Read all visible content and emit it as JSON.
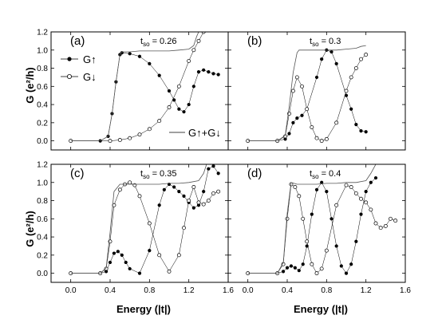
{
  "figure": {
    "ylabel_top": "G (e²/h)",
    "ylabel_bottom": "G (e²/h)",
    "xlabel_left": "Energy (|t|)",
    "xlabel_right": "Energy (|t|)"
  },
  "legend": {
    "up": "G↑",
    "down": "G↓",
    "sum": "G↑+G↓"
  },
  "chart_data": [
    {
      "type": "line",
      "panel": "(a)",
      "annotation": "t_so = 0.26",
      "annotation_main": "t",
      "annotation_sub": "so",
      "annotation_value": " = 0.26",
      "xlim": [
        -0.2,
        1.6
      ],
      "ylim": [
        -0.1,
        1.2
      ],
      "xticks": [
        "0.0",
        "0.4",
        "0.8",
        "1.2",
        "1.6"
      ],
      "yticks": [
        "0.0",
        "0.2",
        "0.4",
        "0.6",
        "0.8",
        "1.0",
        "1.2"
      ],
      "series": [
        {
          "name": "G↑",
          "marker": "filled-circle",
          "line": "none",
          "x": [
            0.0,
            0.3,
            0.38,
            0.42,
            0.46,
            0.5,
            0.52,
            0.6,
            0.7,
            0.8,
            0.9,
            1.0,
            1.05,
            1.1,
            1.15,
            1.2,
            1.25,
            1.3,
            1.35,
            1.4,
            1.45,
            1.5
          ],
          "y": [
            0.0,
            0.0,
            0.05,
            0.3,
            0.65,
            0.95,
            0.97,
            0.96,
            0.93,
            0.85,
            0.72,
            0.55,
            0.45,
            0.35,
            0.32,
            0.4,
            0.6,
            0.76,
            0.78,
            0.76,
            0.74,
            0.73
          ]
        },
        {
          "name": "G↓",
          "marker": "open-circle",
          "line": "none",
          "x": [
            0.0,
            0.4,
            0.5,
            0.6,
            0.7,
            0.8,
            0.9,
            1.0,
            1.1,
            1.2,
            1.25,
            1.3,
            1.35
          ],
          "y": [
            0.0,
            0.0,
            0.01,
            0.03,
            0.07,
            0.13,
            0.22,
            0.37,
            0.6,
            0.88,
            1.0,
            1.1,
            1.2
          ]
        },
        {
          "name": "G↑+G↓",
          "marker": "none",
          "line": "solid",
          "x": [
            0.0,
            0.3,
            0.38,
            0.42,
            0.46,
            0.5,
            0.52,
            0.6,
            0.7,
            0.8,
            0.9,
            1.0,
            1.1,
            1.2,
            1.25,
            1.28,
            1.3
          ],
          "y": [
            0.0,
            0.0,
            0.05,
            0.3,
            0.65,
            0.95,
            0.98,
            0.98,
            0.99,
            0.99,
            0.99,
            0.99,
            1.0,
            1.01,
            1.05,
            1.15,
            1.2
          ]
        }
      ]
    },
    {
      "type": "line",
      "panel": "(b)",
      "annotation": "t_so = 0.3",
      "annotation_main": "t",
      "annotation_sub": "so",
      "annotation_value": " = 0.3",
      "xlim": [
        -0.2,
        1.6
      ],
      "ylim": [
        -0.1,
        1.2
      ],
      "xticks": [
        "0.0",
        "0.4",
        "0.8",
        "1.2",
        "1.6"
      ],
      "yticks": [
        "0.0",
        "0.2",
        "0.4",
        "0.6",
        "0.8",
        "1.0",
        "1.2"
      ],
      "series": [
        {
          "name": "G↑",
          "marker": "filled-circle",
          "line": "none",
          "x": [
            0.0,
            0.3,
            0.38,
            0.42,
            0.46,
            0.5,
            0.55,
            0.6,
            0.7,
            0.75,
            0.8,
            0.85,
            0.9,
            1.0,
            1.05,
            1.1,
            1.15,
            1.2
          ],
          "y": [
            0.0,
            0.0,
            0.02,
            0.08,
            0.2,
            0.25,
            0.28,
            0.35,
            0.7,
            0.9,
            1.0,
            0.98,
            0.85,
            0.5,
            0.35,
            0.18,
            0.11,
            0.1
          ]
        },
        {
          "name": "G↓",
          "marker": "open-circle",
          "line": "none",
          "x": [
            0.0,
            0.3,
            0.38,
            0.42,
            0.46,
            0.5,
            0.55,
            0.6,
            0.65,
            0.7,
            0.75,
            0.8,
            0.9,
            1.0,
            1.05,
            1.1,
            1.15,
            1.2
          ],
          "y": [
            0.0,
            0.0,
            0.05,
            0.3,
            0.55,
            0.7,
            0.6,
            0.35,
            0.15,
            0.03,
            0.0,
            0.02,
            0.2,
            0.55,
            0.7,
            0.8,
            0.9,
            0.95
          ]
        },
        {
          "name": "G↑+G↓",
          "marker": "none",
          "line": "solid",
          "x": [
            0.0,
            0.3,
            0.38,
            0.42,
            0.46,
            0.5,
            0.52,
            0.6,
            0.7,
            0.8,
            0.9,
            1.0,
            1.1,
            1.15,
            1.2
          ],
          "y": [
            0.0,
            0.0,
            0.06,
            0.38,
            0.75,
            0.97,
            1.0,
            1.0,
            1.0,
            1.0,
            1.0,
            1.01,
            1.02,
            1.04,
            1.05
          ]
        }
      ]
    },
    {
      "type": "line",
      "panel": "(c)",
      "annotation": "t_so = 0.35",
      "annotation_main": "t",
      "annotation_sub": "so",
      "annotation_value": " = 0.35",
      "xlim": [
        -0.2,
        1.6
      ],
      "ylim": [
        -0.1,
        1.2
      ],
      "xticks": [
        "0.0",
        "0.4",
        "0.8",
        "1.2",
        "1.6"
      ],
      "yticks": [
        "0.0",
        "0.2",
        "0.4",
        "0.6",
        "0.8",
        "1.0",
        "1.2"
      ],
      "series": [
        {
          "name": "G↑",
          "marker": "filled-circle",
          "line": "none",
          "x": [
            0.0,
            0.3,
            0.36,
            0.4,
            0.44,
            0.48,
            0.52,
            0.56,
            0.6,
            0.7,
            0.8,
            0.9,
            0.95,
            1.0,
            1.05,
            1.1,
            1.15,
            1.2,
            1.25,
            1.3,
            1.35,
            1.4,
            1.45,
            1.5
          ],
          "y": [
            0.0,
            0.0,
            0.02,
            0.12,
            0.22,
            0.24,
            0.2,
            0.12,
            0.05,
            0.0,
            0.25,
            0.75,
            0.92,
            0.98,
            0.95,
            0.9,
            0.85,
            0.78,
            0.72,
            0.75,
            0.9,
            1.15,
            1.18,
            1.1
          ]
        },
        {
          "name": "G↓",
          "marker": "open-circle",
          "line": "none",
          "x": [
            0.0,
            0.3,
            0.36,
            0.4,
            0.44,
            0.5,
            0.55,
            0.6,
            0.65,
            0.7,
            0.8,
            0.9,
            1.0,
            1.1,
            1.15,
            1.2,
            1.25,
            1.3,
            1.35,
            1.4,
            1.45,
            1.5
          ],
          "y": [
            0.0,
            0.0,
            0.05,
            0.35,
            0.75,
            0.92,
            0.98,
            1.0,
            0.97,
            0.85,
            0.55,
            0.2,
            0.02,
            0.2,
            0.5,
            0.8,
            0.95,
            0.78,
            0.76,
            0.8,
            0.88,
            0.9
          ]
        },
        {
          "name": "G↑+G↓",
          "marker": "none",
          "line": "solid",
          "x": [
            0.0,
            0.3,
            0.36,
            0.4,
            0.44,
            0.5,
            0.6,
            0.7,
            0.8,
            0.9,
            1.0,
            1.1,
            1.2,
            1.3,
            1.35,
            1.38
          ],
          "y": [
            0.0,
            0.0,
            0.06,
            0.45,
            0.9,
            0.98,
            0.98,
            0.98,
            0.98,
            0.98,
            0.99,
            0.99,
            1.0,
            1.02,
            1.1,
            1.2
          ]
        }
      ]
    },
    {
      "type": "line",
      "panel": "(d)",
      "annotation": "t_so = 0.4",
      "annotation_main": "t",
      "annotation_sub": "so",
      "annotation_value": " = 0.4",
      "xlim": [
        -0.2,
        1.6
      ],
      "ylim": [
        -0.1,
        1.2
      ],
      "xticks": [
        "0.0",
        "0.4",
        "0.8",
        "1.2",
        "1.6"
      ],
      "yticks": [
        "0.0",
        "0.2",
        "0.4",
        "0.6",
        "0.8",
        "1.0",
        "1.2"
      ],
      "series": [
        {
          "name": "G↑",
          "marker": "filled-circle",
          "line": "none",
          "x": [
            0.0,
            0.3,
            0.36,
            0.4,
            0.44,
            0.48,
            0.52,
            0.56,
            0.6,
            0.65,
            0.7,
            0.75,
            0.8,
            0.85,
            0.9,
            0.95,
            1.0,
            1.05,
            1.1,
            1.15,
            1.2,
            1.25,
            1.3
          ],
          "y": [
            0.0,
            0.0,
            0.02,
            0.06,
            0.08,
            0.06,
            0.03,
            0.1,
            0.3,
            0.65,
            0.92,
            1.0,
            0.9,
            0.6,
            0.3,
            0.08,
            0.0,
            0.1,
            0.35,
            0.65,
            0.9,
            1.0,
            1.05
          ]
        },
        {
          "name": "G↓",
          "marker": "open-circle",
          "line": "none",
          "x": [
            0.0,
            0.3,
            0.36,
            0.4,
            0.44,
            0.48,
            0.52,
            0.56,
            0.6,
            0.65,
            0.7,
            0.75,
            0.8,
            0.9,
            1.0,
            1.05,
            1.1,
            1.15,
            1.2,
            1.25,
            1.3,
            1.35,
            1.4,
            1.45,
            1.5
          ],
          "y": [
            0.0,
            0.0,
            0.1,
            0.6,
            0.98,
            0.95,
            0.85,
            0.6,
            0.35,
            0.1,
            0.0,
            0.05,
            0.25,
            0.75,
            0.97,
            0.95,
            0.88,
            0.82,
            0.78,
            0.7,
            0.55,
            0.5,
            0.52,
            0.6,
            0.58
          ]
        },
        {
          "name": "G↑+G↓",
          "marker": "none",
          "line": "solid",
          "x": [
            0.0,
            0.3,
            0.36,
            0.4,
            0.44,
            0.5,
            0.6,
            0.7,
            0.8,
            0.9,
            1.0,
            1.1,
            1.2,
            1.25,
            1.3
          ],
          "y": [
            0.0,
            0.0,
            0.12,
            0.66,
            1.0,
            0.98,
            0.98,
            0.98,
            0.99,
            0.99,
            1.0,
            1.0,
            1.02,
            1.1,
            1.2
          ]
        }
      ]
    }
  ]
}
